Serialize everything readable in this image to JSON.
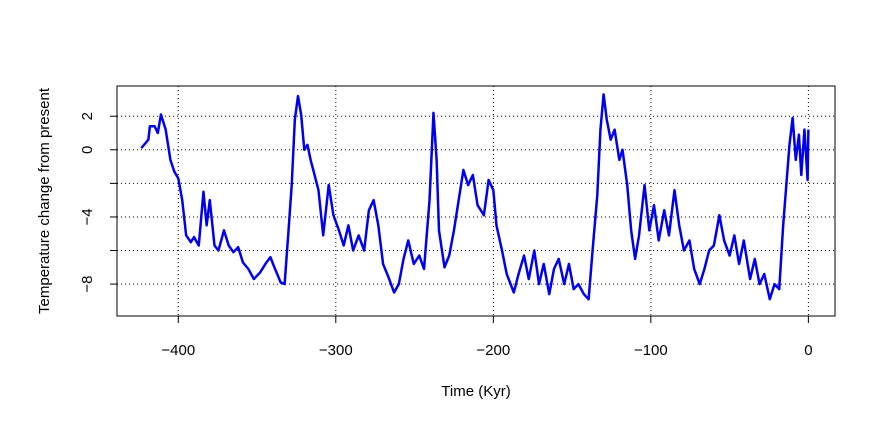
{
  "chart_data": {
    "type": "line",
    "xlabel": "Time (Kyr)",
    "ylabel": "Temperature change from present",
    "color": "#0000ee",
    "x": [
      -423.5,
      -419,
      -418,
      -415,
      -413,
      -411,
      -408,
      -405,
      -402.5,
      -400,
      -397.5,
      -395,
      -392,
      -390,
      -387,
      -384,
      -382,
      -380,
      -377,
      -374.5,
      -371,
      -368,
      -365,
      -362,
      -359,
      -355.5,
      -352,
      -348,
      -344,
      -341.5,
      -339,
      -335,
      -332.5,
      -330,
      -328,
      -326,
      -324,
      -322,
      -320,
      -318,
      -316,
      -313.5,
      -311,
      -308,
      -304.5,
      -301.5,
      -298,
      -295,
      -292,
      -289,
      -285.5,
      -282,
      -279,
      -276,
      -273,
      -270,
      -266.5,
      -263,
      -260,
      -257,
      -254,
      -250.5,
      -247,
      -244,
      -240.5,
      -238,
      -236,
      -234.5,
      -231,
      -228,
      -225,
      -222,
      -219,
      -216,
      -213,
      -210,
      -206,
      -203,
      -200,
      -198,
      -194.5,
      -191.5,
      -187,
      -184,
      -180.5,
      -177.5,
      -174,
      -171,
      -168,
      -164.5,
      -161.5,
      -158.5,
      -155,
      -152,
      -149,
      -146,
      -142.5,
      -139.5,
      -137,
      -134,
      -132,
      -130,
      -128,
      -125.5,
      -123,
      -120,
      -118,
      -115,
      -112.5,
      -110,
      -107.5,
      -104,
      -101,
      -98,
      -95,
      -91.5,
      -88.5,
      -85,
      -82,
      -79,
      -75.5,
      -72.5,
      -69,
      -66,
      -63,
      -60,
      -56.5,
      -53.5,
      -50,
      -47,
      -44,
      -41,
      -37,
      -34,
      -31,
      -28,
      -24.5,
      -21.5,
      -18.5,
      -16,
      -14,
      -12,
      -10,
      -8,
      -6,
      -4.5,
      -2.5,
      -0.5,
      0
    ],
    "values": [
      0.1,
      0.6,
      1.4,
      1.4,
      1.0,
      2.1,
      1.2,
      -0.6,
      -1.3,
      -1.7,
      -3.0,
      -5.1,
      -5.5,
      -5.2,
      -5.7,
      -2.5,
      -4.5,
      -3.0,
      -5.7,
      -6.0,
      -4.8,
      -5.7,
      -6.1,
      -5.8,
      -6.7,
      -7.1,
      -7.7,
      -7.3,
      -6.7,
      -6.4,
      -7.0,
      -7.9,
      -8.0,
      -4.8,
      -2.1,
      1.8,
      3.2,
      2.1,
      0,
      0.3,
      -0.6,
      -1.5,
      -2.4,
      -5.1,
      -2.1,
      -3.9,
      -4.8,
      -5.7,
      -4.5,
      -6.0,
      -5.1,
      -6.0,
      -3.6,
      -3.0,
      -4.5,
      -6.8,
      -7.6,
      -8.5,
      -8.0,
      -6.5,
      -5.4,
      -6.8,
      -6.3,
      -7.1,
      -3.0,
      2.2,
      -0.6,
      -4.8,
      -7.0,
      -6.3,
      -4.8,
      -3.0,
      -1.2,
      -2.1,
      -1.5,
      -3.3,
      -3.9,
      -1.8,
      -2.4,
      -4.5,
      -6.0,
      -7.4,
      -8.5,
      -7.4,
      -6.3,
      -7.7,
      -6.0,
      -8.0,
      -6.8,
      -8.6,
      -7.1,
      -6.5,
      -8.0,
      -6.8,
      -8.3,
      -8.0,
      -8.6,
      -8.9,
      -6.0,
      -2.7,
      1.2,
      3.3,
      1.8,
      0.6,
      1.2,
      -0.6,
      0,
      -2.1,
      -4.8,
      -6.5,
      -5.1,
      -2.1,
      -4.8,
      -3.3,
      -5.4,
      -3.6,
      -5.1,
      -2.4,
      -4.5,
      -6.0,
      -5.4,
      -7.1,
      -8.0,
      -7.1,
      -6.0,
      -5.7,
      -3.9,
      -5.4,
      -6.3,
      -5.1,
      -6.8,
      -5.4,
      -7.7,
      -6.5,
      -8.0,
      -7.4,
      -8.9,
      -8.0,
      -8.3,
      -4.5,
      -2.1,
      0.3,
      1.9,
      -0.6,
      0.9,
      -1.5,
      1.2,
      -1.8,
      1.2
    ],
    "xlim": [
      -438.9,
      16.9
    ],
    "ylim": [
      -9.9,
      3.8
    ],
    "xticks": [
      {
        "value": -400,
        "label": "−400"
      },
      {
        "value": -300,
        "label": "−300"
      },
      {
        "value": -200,
        "label": "−200"
      },
      {
        "value": -100,
        "label": "−100"
      },
      0
    ],
    "yticks": [
      {
        "value": -8,
        "label": "−8"
      },
      {
        "value": -4,
        "label": "−4"
      },
      0,
      2
    ],
    "ygrid": [
      -8,
      -6,
      -4,
      -2,
      0,
      2
    ],
    "grid": true
  }
}
